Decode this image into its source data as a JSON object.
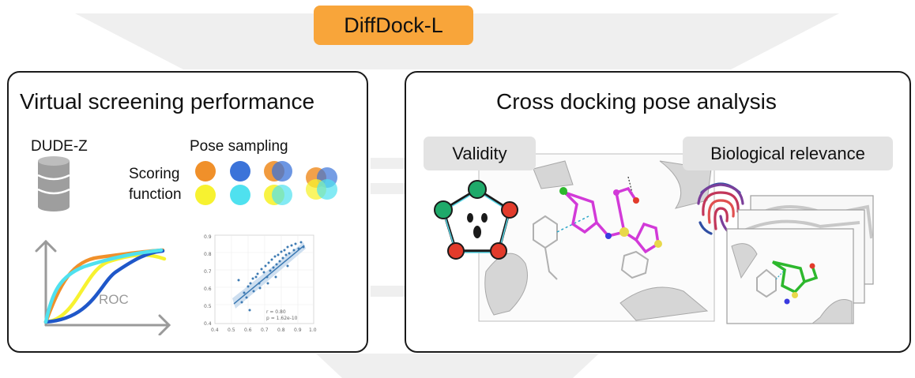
{
  "header": {
    "title": "DiffDock-L"
  },
  "left_panel": {
    "title": "Virtual screening performance",
    "dataset_label": "DUDE-Z",
    "pose_sampling_label": "Pose sampling",
    "scoring_label_line1": "Scoring",
    "scoring_label_line2": "function",
    "roc_label": "ROC",
    "scatter_stat_r": "r = 0.80",
    "scatter_stat_p": "p = 1.62e-10",
    "scatter_xticks": [
      "0.4",
      "0.5",
      "0.6",
      "0.7",
      "0.8",
      "0.9",
      "1.0"
    ],
    "scatter_yticks": [
      "0.4",
      "0.5",
      "0.6",
      "0.7",
      "0.8",
      "0.9"
    ]
  },
  "right_panel": {
    "title": "Cross docking pose analysis",
    "validity_label": "Validity",
    "relevance_label": "Biological relevance"
  },
  "colors": {
    "orange": "#f0902a",
    "blue": "#3b73d9",
    "yellow": "#f7f230",
    "cyan": "#4fe1ef",
    "badge": "#f8a53a",
    "funnel": "#efefef",
    "ligand_magenta": "#d23ad8",
    "ligand_green": "#2db82d",
    "atom_green": "#1faa6a",
    "atom_red": "#e23b2b"
  }
}
